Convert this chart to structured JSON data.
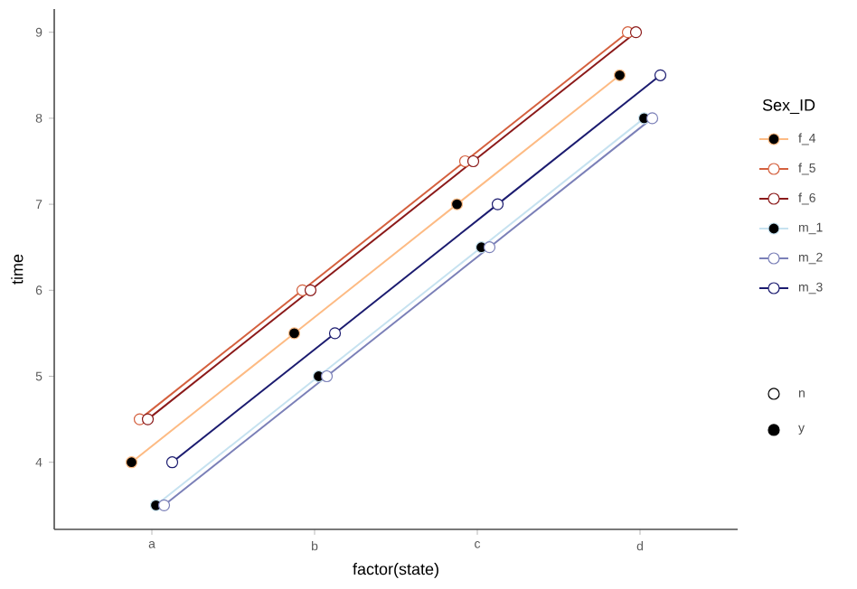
{
  "chart_data": {
    "type": "line",
    "xlabel": "factor(state)",
    "ylabel": "time",
    "legend_title": "Sex_ID",
    "legend": "right",
    "marker": "circle",
    "grid": false,
    "categories": [
      "a",
      "b",
      "c",
      "d"
    ],
    "ylim": [
      3.22,
      9.27
    ],
    "yticks": [
      4,
      5,
      6,
      7,
      8,
      9
    ],
    "annotations": [
      "n",
      "y"
    ],
    "series": [
      {
        "name": "f_4",
        "color": "#fdbb84",
        "values": [
          4,
          5.5,
          7,
          8.5
        ],
        "colors": [
          "#000000",
          "#000000",
          "#000000",
          "#000000"
        ]
      },
      {
        "name": "f_5",
        "color": "#d4603e",
        "values": [
          4.5,
          6,
          7.5,
          9
        ]
      },
      {
        "name": "f_6",
        "color": "#8b1a1a",
        "values": [
          4.5,
          6,
          7.5,
          9
        ]
      },
      {
        "name": "m_1",
        "color": "#c6e2f0",
        "values": [
          3.5,
          5,
          6.5,
          8
        ],
        "colors": [
          "#000000",
          "#000000",
          "#000000",
          "#000000"
        ]
      },
      {
        "name": "m_2",
        "color": "#7b80b8",
        "values": [
          3.5,
          5,
          6.5,
          8
        ]
      },
      {
        "name": "m_3",
        "color": "#1c1c70",
        "values": [
          4,
          5.5,
          7,
          8.5
        ]
      }
    ]
  }
}
